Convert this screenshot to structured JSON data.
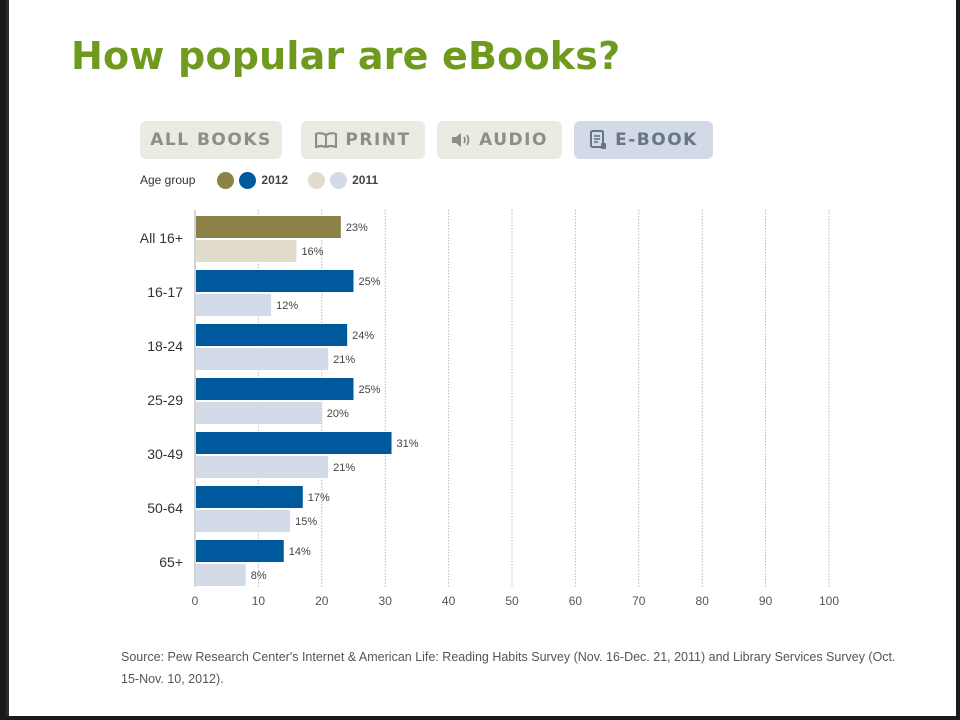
{
  "slide": {
    "title": "How popular are eBooks?"
  },
  "tabs": [
    {
      "label": "ALL BOOKS",
      "icon": "none",
      "active": false
    },
    {
      "label": "PRINT",
      "icon": "open-book-icon",
      "active": false
    },
    {
      "label": "AUDIO",
      "icon": "speaker-icon",
      "active": false
    },
    {
      "label": "E-BOOK",
      "icon": "ebook-icon",
      "active": true
    }
  ],
  "legend": {
    "label": "Age group",
    "year_2012": "2012",
    "year_2011": "2011",
    "colors": {
      "all_2012": "#8c8147",
      "all_2011": "#e1dccb",
      "age_2012": "#00599c",
      "age_2011": "#d3dbe8"
    }
  },
  "chart_data": {
    "type": "bar",
    "orientation": "horizontal",
    "categories": [
      "All 16+",
      "16-17",
      "18-24",
      "25-29",
      "30-49",
      "50-64",
      "65+"
    ],
    "series": [
      {
        "name": "2012",
        "values": [
          23,
          25,
          24,
          25,
          31,
          17,
          14
        ]
      },
      {
        "name": "2011",
        "values": [
          16,
          12,
          21,
          20,
          21,
          15,
          8
        ]
      }
    ],
    "value_suffix": "%",
    "xlim": [
      0,
      100
    ],
    "xticks": [
      0,
      10,
      20,
      30,
      40,
      50,
      60,
      70,
      80,
      90,
      100
    ],
    "grid": true,
    "legend_position": "top-left"
  },
  "source": "Source: Pew Research Center's Internet & American Life: Reading Habits Survey (Nov. 16-Dec. 21, 2011) and Library Services Survey (Oct. 15-Nov. 10, 2012)."
}
